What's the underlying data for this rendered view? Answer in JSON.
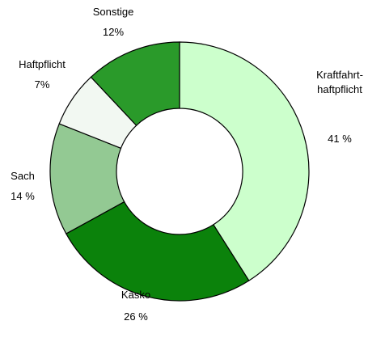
{
  "chart_data": {
    "type": "donut",
    "categories": [
      "Kraftfahrt-\nhaftpflicht",
      "Kasko",
      "Sach",
      "Haftpflicht",
      "Sonstige"
    ],
    "values": [
      41,
      26,
      14,
      7,
      12
    ],
    "value_labels": [
      "41 %",
      "26 %",
      "14 %",
      "7%",
      "12%"
    ],
    "colors": [
      "#ccffcc",
      "#0b820b",
      "#93c993",
      "#f2f8f2",
      "#2a9a2a"
    ]
  }
}
